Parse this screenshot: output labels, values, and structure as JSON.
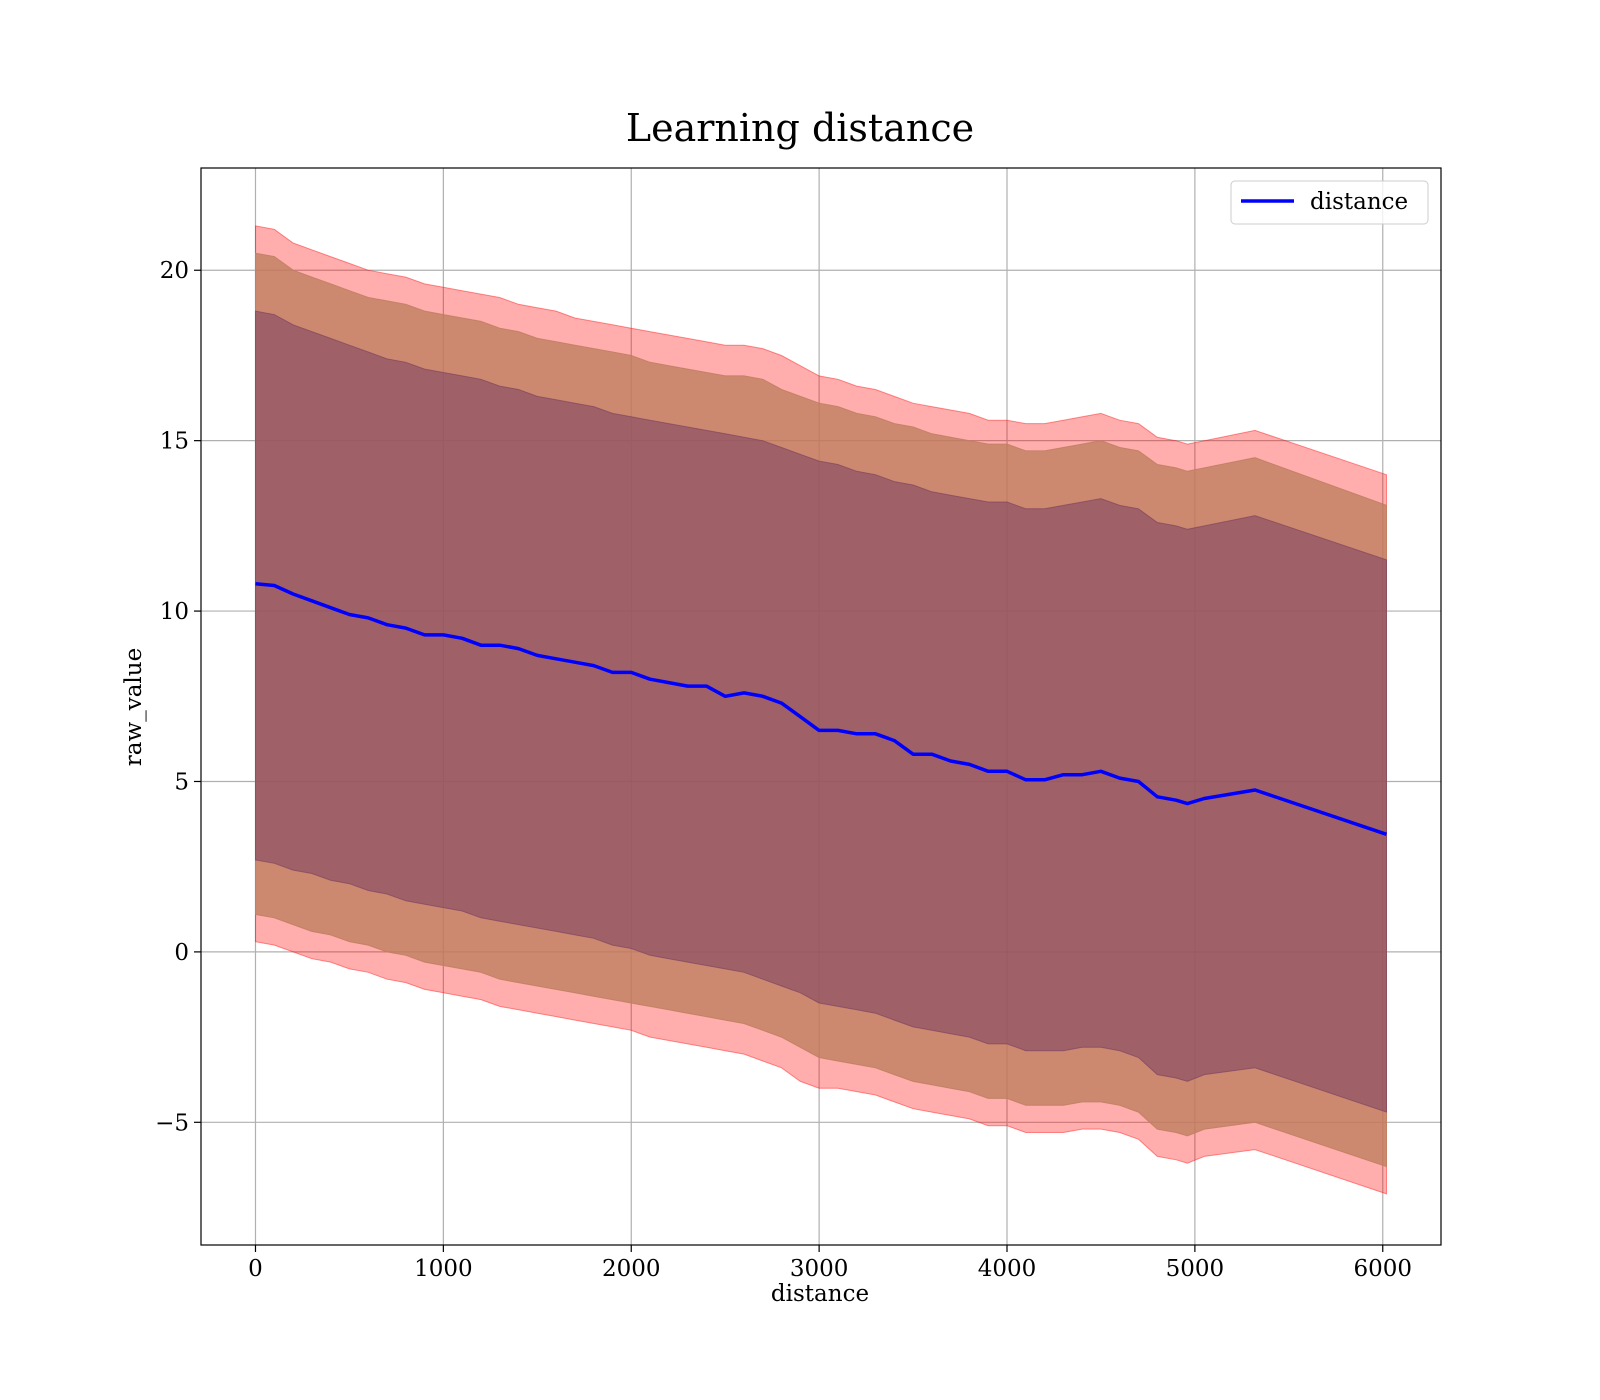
{
  "chart_data": {
    "type": "line",
    "title": "Learning distance",
    "xlabel": "distance",
    "ylabel": "raw_value",
    "xlim": [
      -290,
      6310
    ],
    "ylim": [
      -8.6,
      23
    ],
    "xticks": [
      0,
      1000,
      2000,
      3000,
      4000,
      5000,
      6000
    ],
    "xtick_labels": [
      "0",
      "1000",
      "2000",
      "3000",
      "4000",
      "5000",
      "6000"
    ],
    "yticks": [
      -5,
      0,
      5,
      10,
      15,
      20
    ],
    "ytick_labels": [
      "−5",
      "0",
      "5",
      "10",
      "15",
      "20"
    ],
    "grid": true,
    "legend_placement": "top-right",
    "series": [
      {
        "name": "distance",
        "color": "#0000ff",
        "x": [
          0,
          100,
          200,
          300,
          400,
          500,
          600,
          700,
          800,
          900,
          1000,
          1100,
          1200,
          1300,
          1400,
          1500,
          1600,
          1700,
          1800,
          1900,
          2000,
          2100,
          2200,
          2300,
          2400,
          2500,
          2600,
          2700,
          2800,
          2900,
          3000,
          3100,
          3200,
          3300,
          3400,
          3500,
          3600,
          3700,
          3800,
          3900,
          4000,
          4100,
          4200,
          4300,
          4400,
          4500,
          4600,
          4700,
          4800,
          4900,
          4960,
          5050,
          5320,
          6020
        ],
        "y": [
          10.8,
          10.75,
          10.5,
          10.3,
          10.1,
          9.9,
          9.8,
          9.6,
          9.5,
          9.3,
          9.3,
          9.2,
          9.0,
          9.0,
          8.9,
          8.7,
          8.6,
          8.5,
          8.4,
          8.2,
          8.2,
          8.0,
          7.9,
          7.8,
          7.8,
          7.5,
          7.6,
          7.5,
          7.3,
          6.9,
          6.5,
          6.5,
          6.4,
          6.4,
          6.2,
          5.8,
          5.8,
          5.6,
          5.5,
          5.3,
          5.3,
          5.05,
          5.05,
          5.2,
          5.2,
          5.3,
          5.1,
          5.0,
          4.55,
          4.45,
          4.35,
          4.5,
          4.75,
          3.45
        ]
      }
    ],
    "bands": [
      {
        "level": "outer",
        "color": "#ff0000",
        "opacity": 0.32,
        "upper": [
          21.3,
          21.2,
          20.8,
          20.6,
          20.4,
          20.2,
          20.0,
          19.9,
          19.8,
          19.6,
          19.5,
          19.4,
          19.3,
          19.2,
          19.0,
          18.9,
          18.8,
          18.6,
          18.5,
          18.4,
          18.3,
          18.2,
          18.1,
          18.0,
          17.9,
          17.8,
          17.8,
          17.7,
          17.5,
          17.2,
          16.9,
          16.8,
          16.6,
          16.5,
          16.3,
          16.1,
          16.0,
          15.9,
          15.8,
          15.6,
          15.6,
          15.5,
          15.5,
          15.6,
          15.7,
          15.8,
          15.6,
          15.5,
          15.1,
          15.0,
          14.9,
          15.0,
          15.3,
          14.0
        ],
        "lower": [
          0.3,
          0.2,
          0.0,
          -0.2,
          -0.3,
          -0.5,
          -0.6,
          -0.8,
          -0.9,
          -1.1,
          -1.2,
          -1.3,
          -1.4,
          -1.6,
          -1.7,
          -1.8,
          -1.9,
          -2.0,
          -2.1,
          -2.2,
          -2.3,
          -2.5,
          -2.6,
          -2.7,
          -2.8,
          -2.9,
          -3.0,
          -3.2,
          -3.4,
          -3.8,
          -4.0,
          -4.0,
          -4.1,
          -4.2,
          -4.4,
          -4.6,
          -4.7,
          -4.8,
          -4.9,
          -5.1,
          -5.1,
          -5.3,
          -5.3,
          -5.3,
          -5.2,
          -5.2,
          -5.3,
          -5.5,
          -6.0,
          -6.1,
          -6.2,
          -6.0,
          -5.8,
          -7.1
        ]
      },
      {
        "level": "middle",
        "color": "#c08060",
        "opacity": 0.8,
        "upper": [
          20.5,
          20.4,
          20.0,
          19.8,
          19.6,
          19.4,
          19.2,
          19.1,
          19.0,
          18.8,
          18.7,
          18.6,
          18.5,
          18.3,
          18.2,
          18.0,
          17.9,
          17.8,
          17.7,
          17.6,
          17.5,
          17.3,
          17.2,
          17.1,
          17.0,
          16.9,
          16.9,
          16.8,
          16.5,
          16.3,
          16.1,
          16.0,
          15.8,
          15.7,
          15.5,
          15.4,
          15.2,
          15.1,
          15.0,
          14.9,
          14.9,
          14.7,
          14.7,
          14.8,
          14.9,
          15.0,
          14.8,
          14.7,
          14.3,
          14.2,
          14.1,
          14.2,
          14.5,
          13.1
        ],
        "lower": [
          1.1,
          1.0,
          0.8,
          0.6,
          0.5,
          0.3,
          0.2,
          0.0,
          -0.1,
          -0.3,
          -0.4,
          -0.5,
          -0.6,
          -0.8,
          -0.9,
          -1.0,
          -1.1,
          -1.2,
          -1.3,
          -1.4,
          -1.5,
          -1.6,
          -1.7,
          -1.8,
          -1.9,
          -2.0,
          -2.1,
          -2.3,
          -2.5,
          -2.8,
          -3.1,
          -3.2,
          -3.3,
          -3.4,
          -3.6,
          -3.8,
          -3.9,
          -4.0,
          -4.1,
          -4.3,
          -4.3,
          -4.5,
          -4.5,
          -4.5,
          -4.4,
          -4.4,
          -4.5,
          -4.7,
          -5.2,
          -5.3,
          -5.4,
          -5.2,
          -5.0,
          -6.3
        ]
      },
      {
        "level": "inner",
        "color": "#7a4060",
        "opacity": 0.55,
        "upper": [
          18.8,
          18.7,
          18.4,
          18.2,
          18.0,
          17.8,
          17.6,
          17.4,
          17.3,
          17.1,
          17.0,
          16.9,
          16.8,
          16.6,
          16.5,
          16.3,
          16.2,
          16.1,
          16.0,
          15.8,
          15.7,
          15.6,
          15.5,
          15.4,
          15.3,
          15.2,
          15.1,
          15.0,
          14.8,
          14.6,
          14.4,
          14.3,
          14.1,
          14.0,
          13.8,
          13.7,
          13.5,
          13.4,
          13.3,
          13.2,
          13.2,
          13.0,
          13.0,
          13.1,
          13.2,
          13.3,
          13.1,
          13.0,
          12.6,
          12.5,
          12.4,
          12.5,
          12.8,
          11.5
        ],
        "lower": [
          2.7,
          2.6,
          2.4,
          2.3,
          2.1,
          2.0,
          1.8,
          1.7,
          1.5,
          1.4,
          1.3,
          1.2,
          1.0,
          0.9,
          0.8,
          0.7,
          0.6,
          0.5,
          0.4,
          0.2,
          0.1,
          -0.1,
          -0.2,
          -0.3,
          -0.4,
          -0.5,
          -0.6,
          -0.8,
          -1.0,
          -1.2,
          -1.5,
          -1.6,
          -1.7,
          -1.8,
          -2.0,
          -2.2,
          -2.3,
          -2.4,
          -2.5,
          -2.7,
          -2.7,
          -2.9,
          -2.9,
          -2.9,
          -2.8,
          -2.8,
          -2.9,
          -3.1,
          -3.6,
          -3.7,
          -3.8,
          -3.6,
          -3.4,
          -4.7
        ]
      }
    ]
  }
}
